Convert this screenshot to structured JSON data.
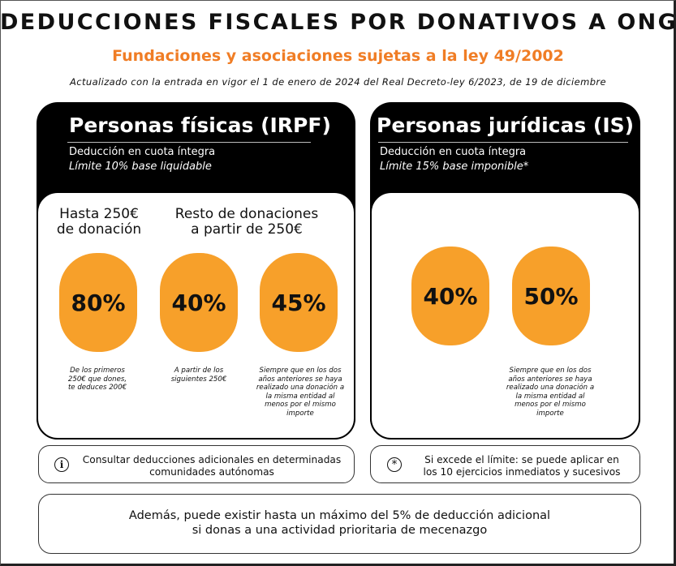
{
  "header": {
    "title": "DEDUCCIONES FISCALES POR DONATIVOS A ONG",
    "subtitle": "Fundaciones y asociaciones sujetas a la ley 49/2002",
    "updated": "Actualizado con la entrada en vigor el 1 de enero de 2024 del Real Decreto-ley 6/2023, de 19 de diciembre"
  },
  "colors": {
    "accent_orange": "#f07d25",
    "blob_orange": "#f7a02a",
    "panel_black": "#000000"
  },
  "individuals": {
    "title": "Personas físicas (IRPF)",
    "line1": "Deducción en cuota íntegra",
    "line2": "Límite 10% base liquidable",
    "col1_head_l1": "Hasta 250€",
    "col1_head_l2": "de donación",
    "col2_head_l1": "Resto de donaciones",
    "col2_head_l2": "a partir de 250€",
    "rates": [
      {
        "value": "80%",
        "note_lines": [
          "De los primeros",
          "250€ que dones,",
          "te deduces 200€"
        ]
      },
      {
        "value": "40%",
        "note_lines": [
          "A partir de los",
          "siguientes 250€"
        ]
      },
      {
        "value": "45%",
        "note_lines": [
          "Siempre que en los dos",
          "años anteriores se haya",
          "realizado una donación a",
          "la misma entidad al",
          "menos por el mismo",
          "importe"
        ]
      }
    ]
  },
  "companies": {
    "title": "Personas jurídicas (IS)",
    "line1": "Deducción en cuota íntegra",
    "line2": "Límite 15% base imponible*",
    "rates": [
      {
        "value": "40%"
      },
      {
        "value": "50%",
        "note_lines": [
          "Siempre que en los dos",
          "años anteriores se haya",
          "realizado una donación a",
          "la misma entidad al",
          "menos por el mismo",
          "importe"
        ]
      }
    ]
  },
  "info": {
    "left_icon": "info-icon",
    "left_symbol": "i",
    "left_line1": "Consultar deducciones adicionales en determinadas",
    "left_line2": "comunidades autónomas",
    "right_icon": "asterisk-icon",
    "right_symbol": "*",
    "right_line1": "Si excede el límite: se puede aplicar en",
    "right_line2": "los 10 ejercicios inmediatos y sucesivos"
  },
  "footer": {
    "line1": "Además, puede existir hasta un máximo del 5% de deducción adicional",
    "line2": "si donas a una actividad prioritaria de mecenazgo"
  }
}
